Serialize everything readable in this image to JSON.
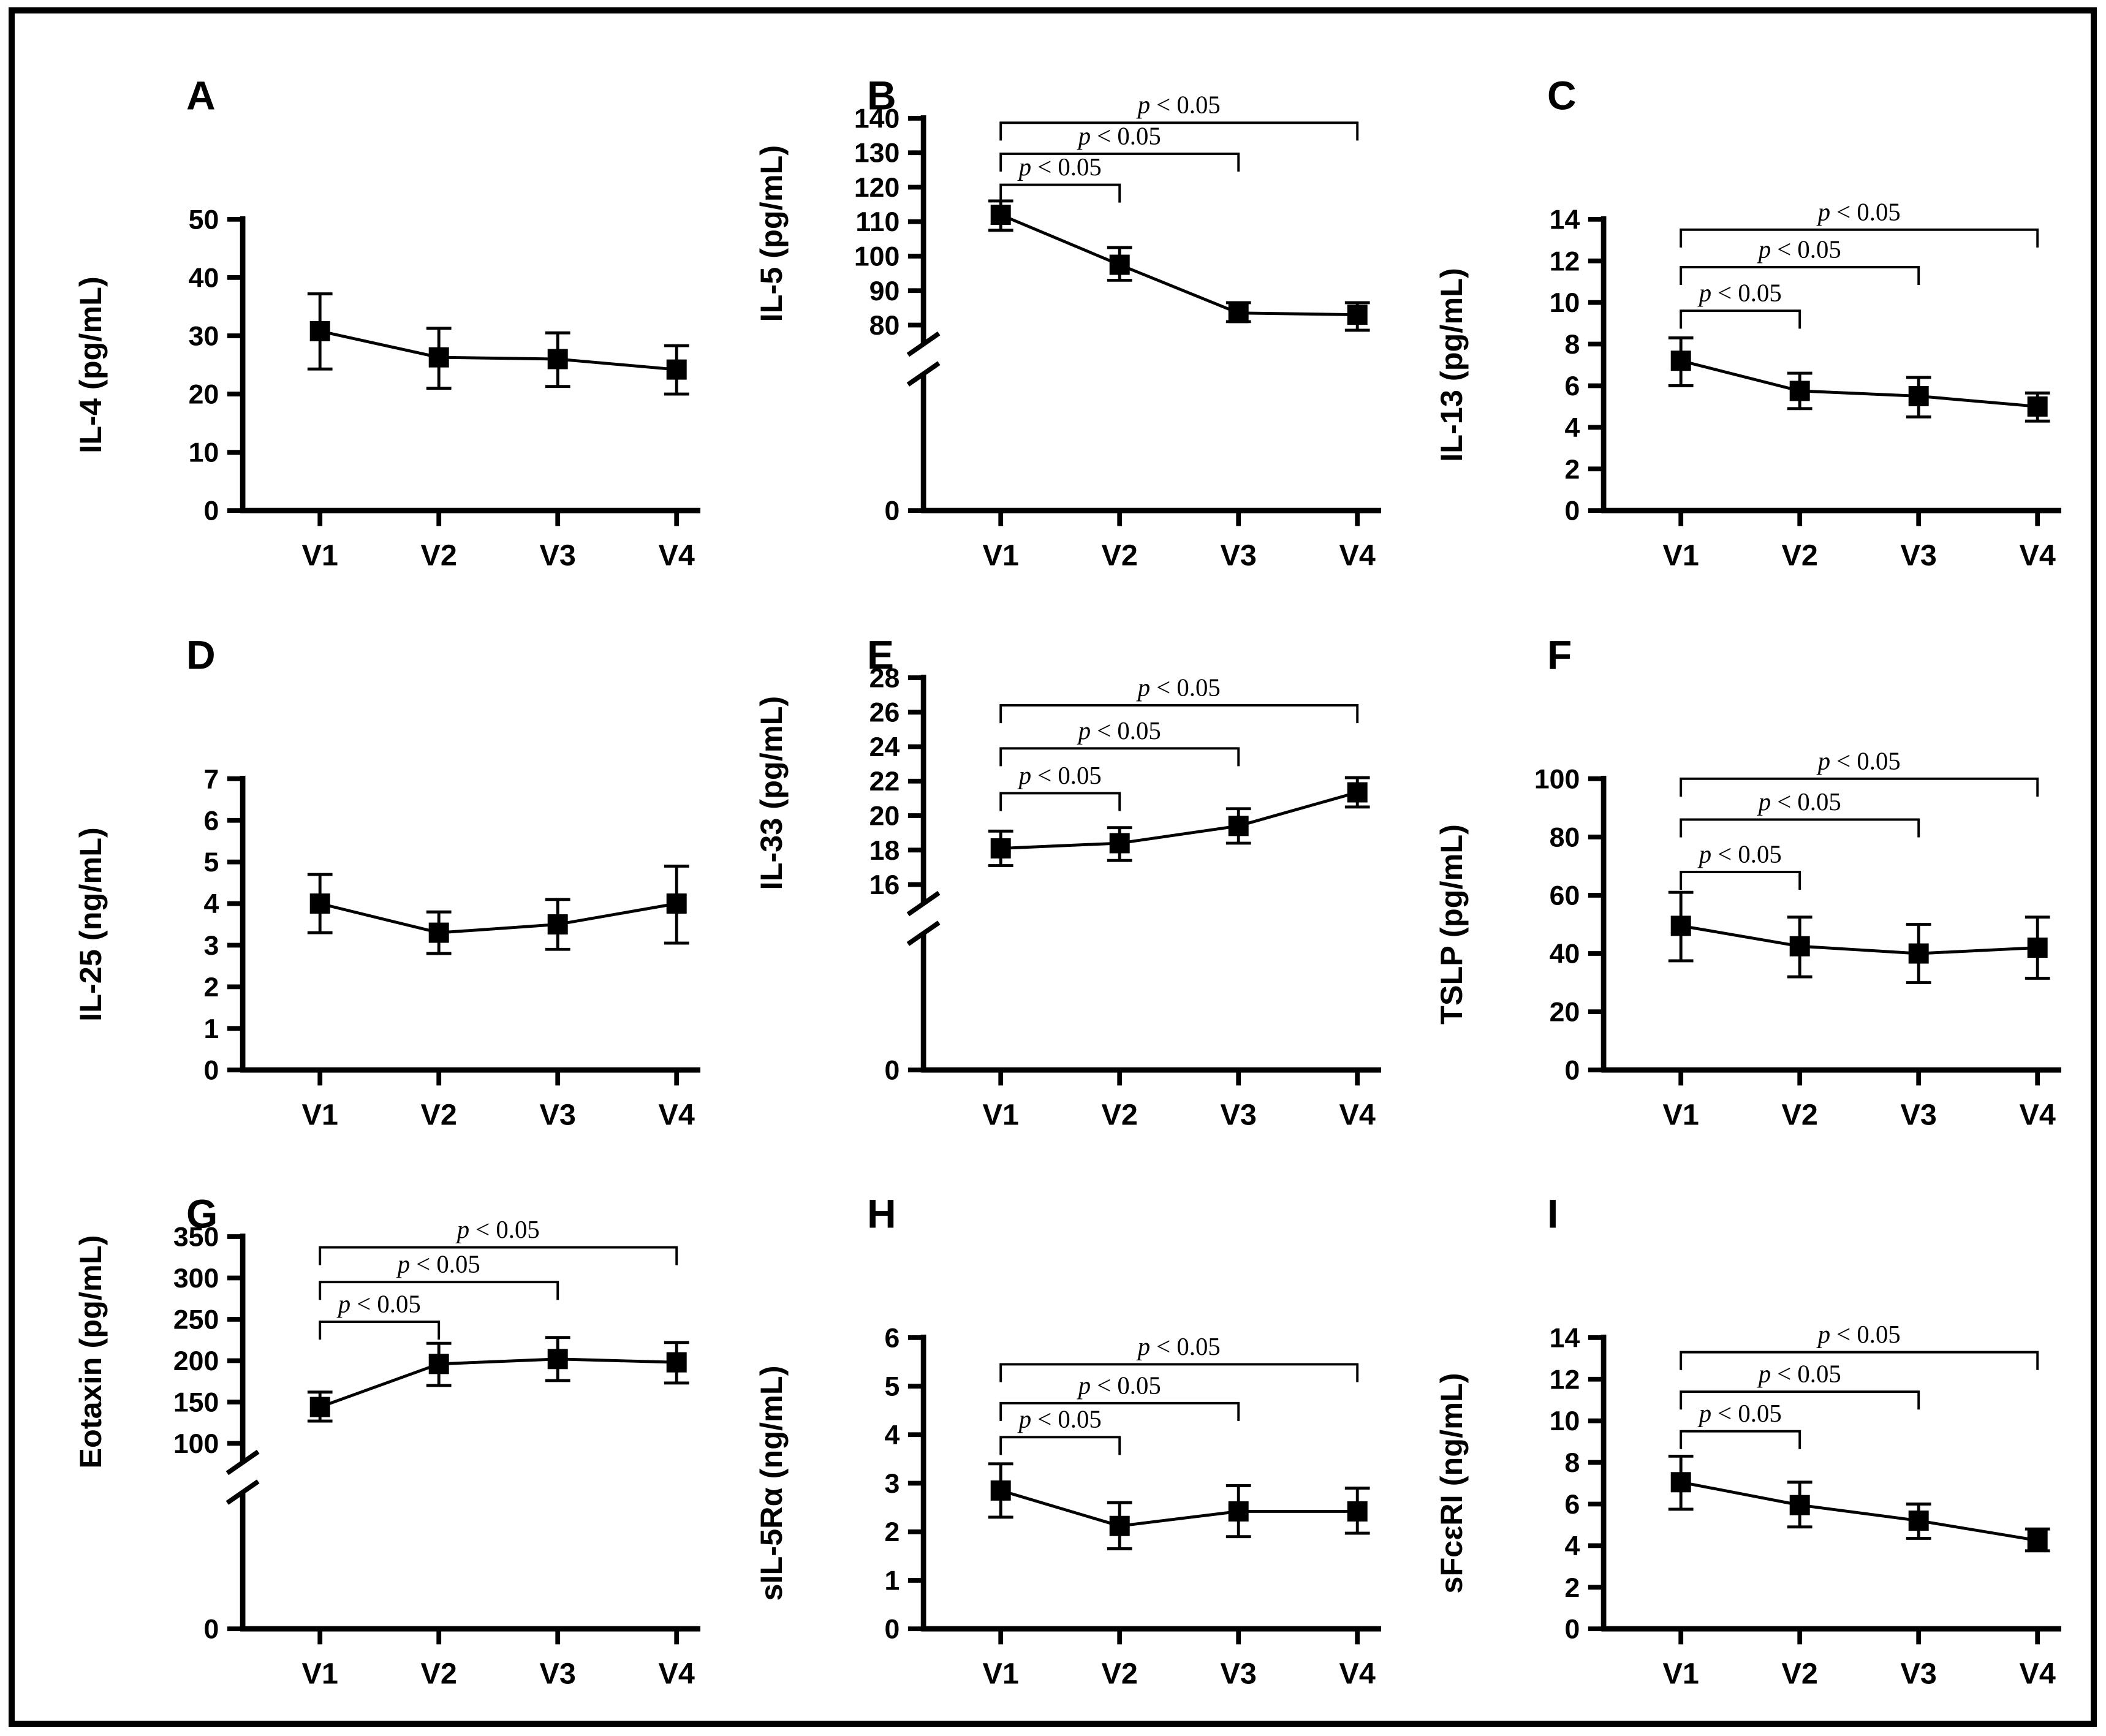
{
  "figure": {
    "background": "#ffffff",
    "border_color": "#000000",
    "axis_color": "#000000",
    "marker_color": "#000000",
    "significance_text": "p < 0.05"
  },
  "chart_data": [
    {
      "type": "line",
      "panel_label": "A",
      "ylabel": "IL-4 (pg/mL)",
      "xlabel": "",
      "categories": [
        "V1",
        "V2",
        "V3",
        "V4"
      ],
      "values": [
        30.8,
        26.3,
        26.0,
        24.2
      ],
      "err_low": [
        24.3,
        21.0,
        21.3,
        20.0
      ],
      "err_high": [
        37.2,
        31.3,
        30.5,
        28.3
      ],
      "yticks": [
        0,
        10,
        20,
        30,
        40,
        50
      ],
      "ylim": [
        0,
        50
      ],
      "axis_break": false,
      "grid": "off",
      "brackets": []
    },
    {
      "type": "line",
      "panel_label": "B",
      "ylabel": "IL-5 (pg/mL)",
      "xlabel": "",
      "categories": [
        "V1",
        "V2",
        "V3",
        "V4"
      ],
      "values": [
        112,
        97.5,
        83.5,
        83
      ],
      "err_low": [
        107.5,
        93,
        81,
        78.5
      ],
      "err_high": [
        116,
        102.5,
        86.5,
        86.5
      ],
      "yticks": [
        80,
        90,
        100,
        110,
        120,
        130,
        140
      ],
      "ylim": [
        80,
        140
      ],
      "axis_break": true,
      "break_zero_label": "0",
      "grid": "off",
      "brackets": [
        {
          "from": "V1",
          "to": "V2",
          "y": 120.7,
          "label": "p < 0.05"
        },
        {
          "from": "V1",
          "to": "V3",
          "y": 129.7,
          "label": "p < 0.05"
        },
        {
          "from": "V1",
          "to": "V4",
          "y": 138.7,
          "label": "p < 0.05"
        }
      ]
    },
    {
      "type": "line",
      "panel_label": "C",
      "ylabel": "IL-13 (pg/mL)",
      "xlabel": "",
      "categories": [
        "V1",
        "V2",
        "V3",
        "V4"
      ],
      "values": [
        7.2,
        5.75,
        5.5,
        5.0
      ],
      "err_low": [
        6.0,
        4.9,
        4.5,
        4.3
      ],
      "err_high": [
        8.3,
        6.6,
        6.4,
        5.65
      ],
      "yticks": [
        0,
        2,
        4,
        6,
        8,
        10,
        12,
        14
      ],
      "ylim": [
        0,
        14
      ],
      "axis_break": false,
      "grid": "off",
      "brackets": [
        {
          "from": "V1",
          "to": "V2",
          "y": 9.6,
          "label": "p < 0.05"
        },
        {
          "from": "V1",
          "to": "V3",
          "y": 11.7,
          "label": "p < 0.05"
        },
        {
          "from": "V1",
          "to": "V4",
          "y": 13.5,
          "label": "p < 0.05"
        }
      ]
    },
    {
      "type": "line",
      "panel_label": "D",
      "ylabel": "IL-25 (ng/mL)",
      "xlabel": "",
      "categories": [
        "V1",
        "V2",
        "V3",
        "V4"
      ],
      "values": [
        4.0,
        3.3,
        3.5,
        4.0
      ],
      "err_low": [
        3.3,
        2.8,
        2.9,
        3.05
      ],
      "err_high": [
        4.7,
        3.8,
        4.1,
        4.9
      ],
      "yticks": [
        0,
        1,
        2,
        3,
        4,
        5,
        6,
        7
      ],
      "ylim": [
        0,
        7
      ],
      "axis_break": false,
      "grid": "off",
      "brackets": []
    },
    {
      "type": "line",
      "panel_label": "E",
      "ylabel": "IL-33 (pg/mL)",
      "xlabel": "",
      "categories": [
        "V1",
        "V2",
        "V3",
        "V4"
      ],
      "values": [
        18.1,
        18.4,
        19.4,
        21.35
      ],
      "err_low": [
        17.1,
        17.4,
        18.4,
        20.5
      ],
      "err_high": [
        19.1,
        19.3,
        20.4,
        22.2
      ],
      "yticks": [
        16,
        18,
        20,
        22,
        24,
        26,
        28
      ],
      "ylim": [
        16,
        28
      ],
      "axis_break": true,
      "break_zero_label": "0",
      "grid": "off",
      "brackets": [
        {
          "from": "V1",
          "to": "V2",
          "y": 21.3,
          "label": "p < 0.05"
        },
        {
          "from": "V1",
          "to": "V3",
          "y": 23.9,
          "label": "p < 0.05"
        },
        {
          "from": "V1",
          "to": "V4",
          "y": 26.4,
          "label": "p < 0.05"
        }
      ]
    },
    {
      "type": "line",
      "panel_label": "F",
      "ylabel": "TSLP (pg/mL)",
      "xlabel": "",
      "categories": [
        "V1",
        "V2",
        "V3",
        "V4"
      ],
      "values": [
        49.5,
        42.5,
        40,
        42
      ],
      "err_low": [
        37.5,
        32,
        30,
        31.5
      ],
      "err_high": [
        61,
        52.5,
        50,
        52.5
      ],
      "yticks": [
        0,
        20,
        40,
        60,
        80,
        100
      ],
      "ylim": [
        0,
        100
      ],
      "axis_break": false,
      "grid": "off",
      "brackets": [
        {
          "from": "V1",
          "to": "V2",
          "y": 68,
          "label": "p < 0.05"
        },
        {
          "from": "V1",
          "to": "V3",
          "y": 86,
          "label": "p < 0.05"
        },
        {
          "from": "V1",
          "to": "V4",
          "y": 100,
          "label": "p < 0.05"
        }
      ]
    },
    {
      "type": "line",
      "panel_label": "G",
      "ylabel": "Eotaxin (pg/mL)",
      "xlabel": "",
      "categories": [
        "V1",
        "V2",
        "V3",
        "V4"
      ],
      "values": [
        144,
        196,
        202,
        198
      ],
      "err_low": [
        127,
        170,
        176,
        173
      ],
      "err_high": [
        162,
        221,
        228,
        222
      ],
      "yticks": [
        100,
        150,
        200,
        250,
        300,
        350
      ],
      "ylim": [
        100,
        350
      ],
      "axis_break": true,
      "break_zero_label": "0",
      "grid": "off",
      "brackets": [
        {
          "from": "V1",
          "to": "V2",
          "y": 247,
          "label": "p < 0.05"
        },
        {
          "from": "V1",
          "to": "V3",
          "y": 295,
          "label": "p < 0.05"
        },
        {
          "from": "V1",
          "to": "V4",
          "y": 337,
          "label": "p < 0.05"
        }
      ]
    },
    {
      "type": "line",
      "panel_label": "H",
      "ylabel": "sIL-5Rα (ng/mL)",
      "xlabel": "",
      "categories": [
        "V1",
        "V2",
        "V3",
        "V4"
      ],
      "values": [
        2.85,
        2.12,
        2.42,
        2.42
      ],
      "err_low": [
        2.3,
        1.65,
        1.9,
        1.97
      ],
      "err_high": [
        3.4,
        2.6,
        2.95,
        2.9
      ],
      "yticks": [
        0,
        1,
        2,
        3,
        4,
        5,
        6
      ],
      "ylim": [
        0,
        6
      ],
      "axis_break": false,
      "grid": "off",
      "brackets": [
        {
          "from": "V1",
          "to": "V2",
          "y": 3.95,
          "label": "p < 0.05"
        },
        {
          "from": "V1",
          "to": "V3",
          "y": 4.65,
          "label": "p < 0.05"
        },
        {
          "from": "V1",
          "to": "V4",
          "y": 5.45,
          "label": "p < 0.05"
        }
      ]
    },
    {
      "type": "line",
      "panel_label": "I",
      "ylabel": "sFcεRI (ng/mL)",
      "xlabel": "",
      "categories": [
        "V1",
        "V2",
        "V3",
        "V4"
      ],
      "values": [
        7.05,
        5.95,
        5.2,
        4.25
      ],
      "err_low": [
        5.75,
        4.9,
        4.35,
        3.75
      ],
      "err_high": [
        8.3,
        7.05,
        6.0,
        4.8
      ],
      "yticks": [
        0,
        2,
        4,
        6,
        8,
        10,
        12,
        14
      ],
      "ylim": [
        0,
        14
      ],
      "axis_break": false,
      "grid": "off",
      "brackets": [
        {
          "from": "V1",
          "to": "V2",
          "y": 9.5,
          "label": "p < 0.05"
        },
        {
          "from": "V1",
          "to": "V3",
          "y": 11.4,
          "label": "p < 0.05"
        },
        {
          "from": "V1",
          "to": "V4",
          "y": 13.3,
          "label": "p < 0.05"
        }
      ]
    }
  ]
}
